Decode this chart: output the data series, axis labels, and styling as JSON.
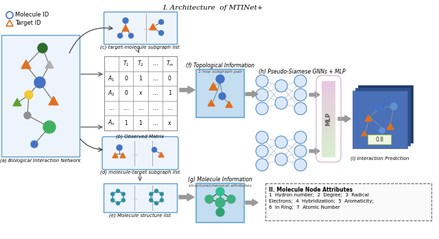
{
  "title": "I. Architecture  of MTINet+",
  "bg_color": "#ffffff",
  "legend": {
    "molecule_label": "Molecule ID",
    "target_label": "Target ID"
  },
  "section_labels": {
    "a": "(a) Biological Interaction Network",
    "b": "(b) Observed Matrix",
    "c": "(c) target-molecule subgraph list",
    "d": "(d) molecule-target subgraph list",
    "e": "(e) Molecule structure list",
    "f_title": "(f) Topological Information",
    "f_sub": "1-hop subgraph pair",
    "g_title": "(g) Molecule Information",
    "g_sub": "structure/chemical attributes",
    "h": "(h) Pseudo-Siamese GNNs + MLP",
    "i": "(i) Interaction Prediction"
  },
  "attr_title": "II. Molecule Node Attributes",
  "attr_lines": [
    "1  Hydron number;  2  Degree;  3  Radical",
    "Electrons;  4  Hybridization;  5  Aromaticity;",
    "6  In Ring;  7  Atomic Number"
  ],
  "colors": {
    "blue_node": "#4472C4",
    "orange_triangle": "#E07020",
    "green_node": "#548235",
    "yellow_node": "#FFD700",
    "gray_node": "#909090",
    "dark_green_node": "#2E6B2E",
    "light_blue_box": "#BDD7EE",
    "light_blue_fill": "#DAEEF8",
    "mlp_top": "#E8B8D8",
    "mlp_bottom": "#D8EED8",
    "nn_node_fill": "#DAE8FC",
    "nn_node_edge": "#6699CC",
    "arrow_gray": "#999999",
    "card_back2": "#2B4A7A",
    "card_back1": "#3A5F9A",
    "card_front": "#5B80C0",
    "teal_node": "#00A888",
    "dark_teal": "#007060"
  }
}
